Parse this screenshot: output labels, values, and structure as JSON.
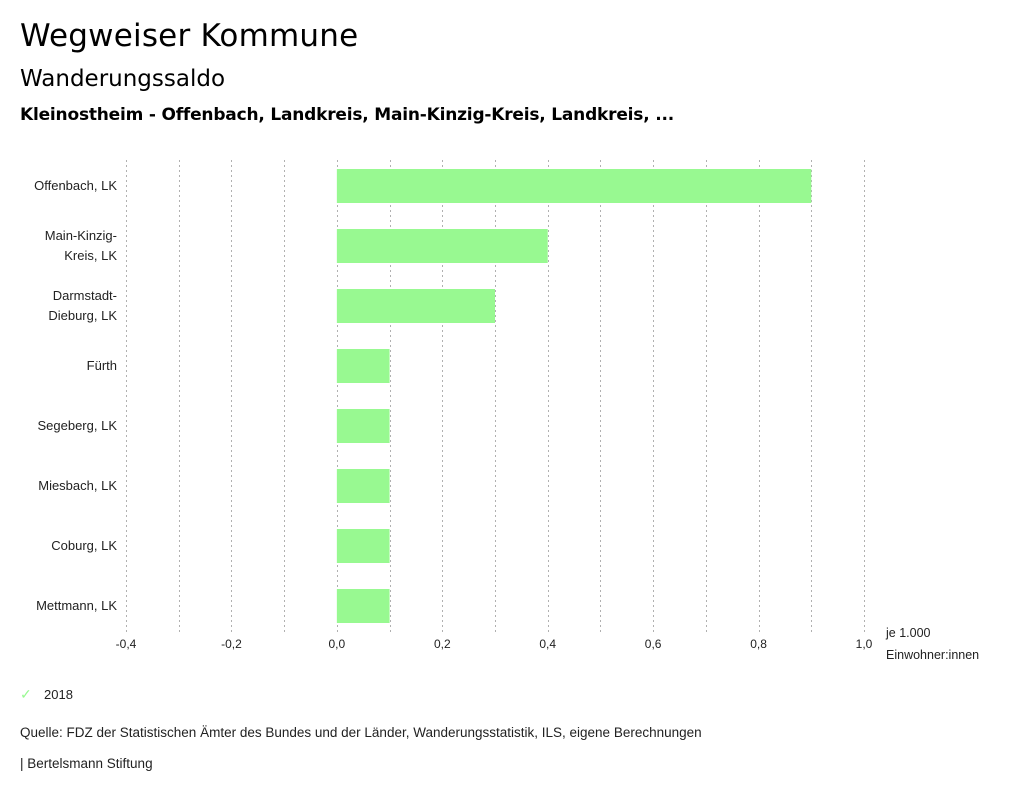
{
  "header": {
    "title": "Wegweiser Kommune",
    "subtitle": "Wanderungssaldo",
    "selection": "Kleinostheim - Offenbach, Landkreis, Main-Kinzig-Kreis, Landkreis, ..."
  },
  "chart_data": {
    "type": "bar",
    "orientation": "horizontal",
    "title": "Wanderungssaldo",
    "xlabel": "je 1.000 Einwohner:innen",
    "unit_label_lines": [
      "je 1.000",
      "Einwohner:innen"
    ],
    "ylabel": "",
    "categories": [
      [
        "Offenbach, LK"
      ],
      [
        "Main-Kinzig-",
        "Kreis, LK"
      ],
      [
        "Darmstadt-",
        "Dieburg, LK"
      ],
      [
        "Fürth"
      ],
      [
        "Segeberg, LK"
      ],
      [
        "Miesbach, LK"
      ],
      [
        "Coburg, LK"
      ],
      [
        "Mettmann, LK"
      ]
    ],
    "series": [
      {
        "name": "2018",
        "color": "#98f991",
        "values": [
          0.9,
          0.4,
          0.3,
          0.1,
          0.1,
          0.1,
          0.1,
          0.1
        ]
      }
    ],
    "xlim": [
      -0.4,
      1.0
    ],
    "ticks": [
      -0.4,
      -0.2,
      0.0,
      0.2,
      0.4,
      0.6,
      0.8,
      1.0
    ],
    "tick_labels": [
      "-0,4",
      "-0,2",
      "0,0",
      "0,2",
      "0,4",
      "0,6",
      "0,8",
      "1,0"
    ],
    "gridlines_step": 0.1,
    "grid": true,
    "legend_position": "bottom-left"
  },
  "legend": {
    "items": [
      {
        "label": "2018",
        "icon": "check-icon",
        "color": "#98f991"
      }
    ]
  },
  "footer": {
    "source": "Quelle: FDZ der Statistischen Ämter des Bundes und der Länder, Wanderungsstatistik, ILS, eigene Berechnungen",
    "credit": "| Bertelsmann Stiftung"
  }
}
